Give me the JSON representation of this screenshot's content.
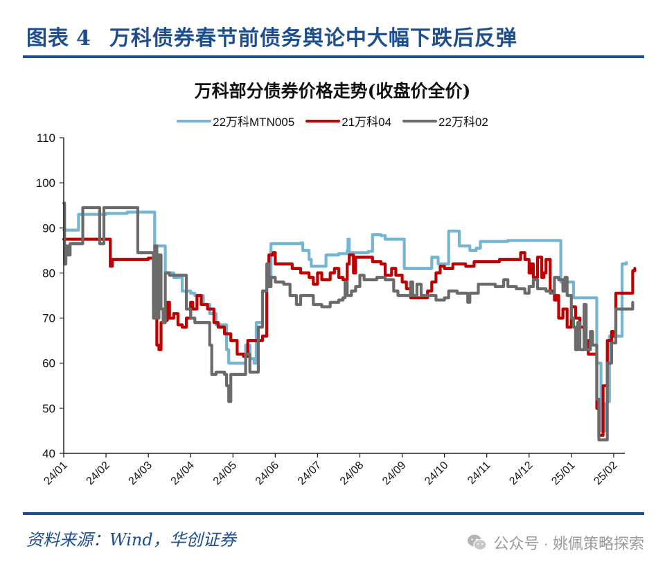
{
  "figure": {
    "label": "图表",
    "number": "4",
    "title": "万科债券春节前债务舆论中大幅下跌后反弹"
  },
  "source": "资料来源：Wind，华创证券",
  "watermark": "公众号 · 姚佩策略探索",
  "colors": {
    "accent": "#1f4e8c",
    "series1": "#74b5d2",
    "series2": "#c00000",
    "series3": "#6b6b6b"
  },
  "chart_data": {
    "type": "line",
    "title": "万科部分债券价格走势(收盘价全价)",
    "xlabel": "",
    "ylabel": "",
    "ylim": [
      40,
      110
    ],
    "yticks": [
      40,
      50,
      60,
      70,
      80,
      90,
      100,
      110
    ],
    "xticks": [
      "24/01",
      "24/02",
      "24/03",
      "24/04",
      "24/05",
      "24/06",
      "24/07",
      "24/08",
      "24/09",
      "24/10",
      "24/11",
      "24/12",
      "25/01",
      "25/02"
    ],
    "grid": false,
    "legend_position": "top",
    "x_unit": "months since 24/01 (0 = 24/01, 13 = 25/02)",
    "series": [
      {
        "name": "22万科MTN005",
        "color": "#74b5d2",
        "points": [
          [
            0,
            89.5
          ],
          [
            0.3,
            89.5
          ],
          [
            0.35,
            93
          ],
          [
            1.0,
            93.2
          ],
          [
            1.5,
            93.5
          ],
          [
            2.1,
            93.5
          ],
          [
            2.15,
            86
          ],
          [
            2.35,
            86
          ],
          [
            2.4,
            80
          ],
          [
            2.6,
            79
          ],
          [
            2.8,
            76
          ],
          [
            3.0,
            75.5
          ],
          [
            3.1,
            75
          ],
          [
            3.3,
            73
          ],
          [
            3.45,
            71
          ],
          [
            3.6,
            68.5
          ],
          [
            3.8,
            68.5
          ],
          [
            3.85,
            63
          ],
          [
            3.9,
            60
          ],
          [
            4.2,
            60
          ],
          [
            4.3,
            64
          ],
          [
            4.4,
            61
          ],
          [
            4.5,
            60
          ],
          [
            4.55,
            69
          ],
          [
            4.7,
            76
          ],
          [
            4.8,
            77
          ],
          [
            4.9,
            86.5
          ],
          [
            5.0,
            86.5
          ],
          [
            5.6,
            86.7
          ],
          [
            5.65,
            85
          ],
          [
            5.8,
            83
          ],
          [
            5.85,
            81.5
          ],
          [
            6.1,
            81.5
          ],
          [
            6.2,
            84
          ],
          [
            6.5,
            84.3
          ],
          [
            6.7,
            85
          ],
          [
            6.72,
            87.5
          ],
          [
            6.75,
            84.5
          ],
          [
            7.2,
            84.8
          ],
          [
            7.3,
            88.5
          ],
          [
            7.5,
            88.3
          ],
          [
            7.6,
            87.5
          ],
          [
            8.0,
            87.5
          ],
          [
            8.05,
            81
          ],
          [
            8.6,
            81
          ],
          [
            8.7,
            83.5
          ],
          [
            8.85,
            82
          ],
          [
            9.0,
            82
          ],
          [
            9.1,
            89.3
          ],
          [
            9.3,
            89.3
          ],
          [
            9.35,
            86
          ],
          [
            9.5,
            86
          ],
          [
            9.6,
            85
          ],
          [
            9.75,
            85.5
          ],
          [
            9.85,
            87
          ],
          [
            10.5,
            87.2
          ],
          [
            11.0,
            87.2
          ],
          [
            11.7,
            87.2
          ],
          [
            11.75,
            78
          ],
          [
            12.0,
            78
          ],
          [
            12.05,
            74.5
          ],
          [
            12.5,
            74.5
          ],
          [
            12.6,
            60
          ],
          [
            12.7,
            45
          ],
          [
            12.8,
            51
          ],
          [
            12.85,
            51.5
          ],
          [
            12.9,
            66
          ],
          [
            13.15,
            66
          ],
          [
            13.2,
            82
          ],
          [
            13.3,
            82.3
          ]
        ]
      },
      {
        "name": "21万科04",
        "color": "#c00000",
        "points": [
          [
            0,
            87.5
          ],
          [
            0.9,
            87.5
          ],
          [
            1.05,
            87.5
          ],
          [
            1.1,
            81.5
          ],
          [
            1.15,
            83
          ],
          [
            2.0,
            83.3
          ],
          [
            2.1,
            83.3
          ],
          [
            2.12,
            73
          ],
          [
            2.2,
            64
          ],
          [
            2.25,
            63
          ],
          [
            2.3,
            69
          ],
          [
            2.4,
            69.5
          ],
          [
            2.45,
            73.5
          ],
          [
            2.5,
            70
          ],
          [
            2.6,
            71
          ],
          [
            2.7,
            68.5
          ],
          [
            2.8,
            68
          ],
          [
            2.9,
            70
          ],
          [
            3.0,
            73.5
          ],
          [
            3.05,
            72
          ],
          [
            3.15,
            75
          ],
          [
            3.25,
            73
          ],
          [
            3.4,
            72
          ],
          [
            3.55,
            69
          ],
          [
            3.65,
            68
          ],
          [
            3.8,
            66.5
          ],
          [
            3.95,
            65
          ],
          [
            4.1,
            62
          ],
          [
            4.25,
            61.5
          ],
          [
            4.35,
            65
          ],
          [
            4.6,
            65
          ],
          [
            4.7,
            66
          ],
          [
            4.8,
            78
          ],
          [
            4.85,
            84
          ],
          [
            4.95,
            84.5
          ],
          [
            5.0,
            82
          ],
          [
            5.2,
            82
          ],
          [
            5.4,
            81
          ],
          [
            5.6,
            80
          ],
          [
            5.8,
            79
          ],
          [
            5.9,
            77.5
          ],
          [
            6.0,
            80
          ],
          [
            6.1,
            78.5
          ],
          [
            6.3,
            80
          ],
          [
            6.4,
            81
          ],
          [
            6.5,
            79
          ],
          [
            6.6,
            78.5
          ],
          [
            6.7,
            82
          ],
          [
            6.75,
            84
          ],
          [
            6.85,
            80
          ],
          [
            6.9,
            83.5
          ],
          [
            7.1,
            83.5
          ],
          [
            7.3,
            82.5
          ],
          [
            7.5,
            82
          ],
          [
            7.6,
            79.5
          ],
          [
            7.75,
            81
          ],
          [
            7.85,
            79.5
          ],
          [
            8.0,
            78
          ],
          [
            8.1,
            76.5
          ],
          [
            8.2,
            74.5
          ],
          [
            8.5,
            74.5
          ],
          [
            8.6,
            76
          ],
          [
            8.7,
            78
          ],
          [
            8.8,
            80
          ],
          [
            8.9,
            81.5
          ],
          [
            9.0,
            81
          ],
          [
            9.2,
            82
          ],
          [
            9.5,
            81.5
          ],
          [
            9.7,
            82.5
          ],
          [
            10.0,
            82.5
          ],
          [
            10.3,
            83
          ],
          [
            10.5,
            83
          ],
          [
            10.7,
            83
          ],
          [
            10.8,
            84.5
          ],
          [
            10.9,
            83
          ],
          [
            11.0,
            80
          ],
          [
            11.05,
            82
          ],
          [
            11.1,
            79
          ],
          [
            11.2,
            83.5
          ],
          [
            11.3,
            79
          ],
          [
            11.35,
            80
          ],
          [
            11.4,
            83
          ],
          [
            11.5,
            76
          ],
          [
            11.6,
            74
          ],
          [
            11.65,
            75
          ],
          [
            11.7,
            70
          ],
          [
            11.8,
            72
          ],
          [
            11.9,
            68
          ],
          [
            12.0,
            72.5
          ],
          [
            12.1,
            70
          ],
          [
            12.2,
            68
          ],
          [
            12.3,
            65
          ],
          [
            12.4,
            62
          ],
          [
            12.5,
            62
          ],
          [
            12.6,
            50
          ],
          [
            12.65,
            44
          ],
          [
            12.75,
            55
          ],
          [
            12.85,
            65
          ],
          [
            12.95,
            67
          ],
          [
            13.0,
            66
          ],
          [
            13.05,
            75.5
          ],
          [
            13.4,
            75.5
          ],
          [
            13.45,
            80.5
          ],
          [
            13.5,
            81
          ]
        ]
      },
      {
        "name": "22万科02",
        "color": "#6b6b6b",
        "points": [
          [
            0,
            95.5
          ],
          [
            0.02,
            82
          ],
          [
            0.05,
            86
          ],
          [
            0.1,
            84
          ],
          [
            0.15,
            86.5
          ],
          [
            0.4,
            86.5
          ],
          [
            0.45,
            94.5
          ],
          [
            0.8,
            94.5
          ],
          [
            0.85,
            86.5
          ],
          [
            0.9,
            86.5
          ],
          [
            0.95,
            94.5
          ],
          [
            1.3,
            94.5
          ],
          [
            1.7,
            94.5
          ],
          [
            1.75,
            84.5
          ],
          [
            2.05,
            84.5
          ],
          [
            2.1,
            84.5
          ],
          [
            2.12,
            70
          ],
          [
            2.15,
            86
          ],
          [
            2.2,
            70
          ],
          [
            2.25,
            84
          ],
          [
            2.3,
            72
          ],
          [
            2.35,
            69
          ],
          [
            2.4,
            80
          ],
          [
            2.5,
            79.5
          ],
          [
            2.85,
            79.5
          ],
          [
            2.9,
            72
          ],
          [
            3.0,
            70
          ],
          [
            3.1,
            69
          ],
          [
            3.4,
            69
          ],
          [
            3.45,
            64
          ],
          [
            3.5,
            57.5
          ],
          [
            3.6,
            58
          ],
          [
            3.8,
            57.5
          ],
          [
            3.85,
            55
          ],
          [
            3.9,
            51.5
          ],
          [
            3.95,
            57.5
          ],
          [
            4.2,
            57.5
          ],
          [
            4.3,
            62
          ],
          [
            4.4,
            58
          ],
          [
            4.5,
            58
          ],
          [
            4.6,
            68
          ],
          [
            4.7,
            76
          ],
          [
            4.8,
            82
          ],
          [
            4.85,
            77
          ],
          [
            4.9,
            79
          ],
          [
            5.0,
            78
          ],
          [
            5.2,
            77.5
          ],
          [
            5.35,
            75
          ],
          [
            5.5,
            73
          ],
          [
            5.6,
            75
          ],
          [
            5.8,
            75
          ],
          [
            5.9,
            73
          ],
          [
            6.1,
            72.5
          ],
          [
            6.3,
            73.5
          ],
          [
            6.5,
            74
          ],
          [
            6.6,
            74.5
          ],
          [
            6.65,
            78
          ],
          [
            6.7,
            75
          ],
          [
            6.8,
            76
          ],
          [
            6.9,
            77
          ],
          [
            7.0,
            79.5
          ],
          [
            7.1,
            78.5
          ],
          [
            7.4,
            79
          ],
          [
            7.6,
            78.5
          ],
          [
            7.8,
            76
          ],
          [
            7.9,
            75
          ],
          [
            8.1,
            75
          ],
          [
            8.2,
            78
          ],
          [
            8.25,
            75
          ],
          [
            8.35,
            77.5
          ],
          [
            8.45,
            75
          ],
          [
            8.6,
            75
          ],
          [
            8.8,
            74
          ],
          [
            9.0,
            74.5
          ],
          [
            9.1,
            76
          ],
          [
            9.2,
            76
          ],
          [
            9.3,
            75.5
          ],
          [
            9.5,
            75.5
          ],
          [
            9.55,
            73.5
          ],
          [
            9.6,
            75.5
          ],
          [
            9.8,
            77.5
          ],
          [
            10.0,
            77.5
          ],
          [
            10.2,
            77
          ],
          [
            10.4,
            78.5
          ],
          [
            10.5,
            77
          ],
          [
            10.7,
            76.5
          ],
          [
            10.9,
            75.5
          ],
          [
            11.0,
            77
          ],
          [
            11.1,
            78.5
          ],
          [
            11.2,
            76.5
          ],
          [
            11.4,
            76
          ],
          [
            11.5,
            75.5
          ],
          [
            11.6,
            79
          ],
          [
            11.7,
            78.5
          ],
          [
            11.8,
            76
          ],
          [
            11.85,
            79
          ],
          [
            11.9,
            75
          ],
          [
            12.0,
            70
          ],
          [
            12.05,
            68
          ],
          [
            12.1,
            63
          ],
          [
            12.15,
            69
          ],
          [
            12.2,
            63
          ],
          [
            12.3,
            73
          ],
          [
            12.35,
            63
          ],
          [
            12.45,
            67
          ],
          [
            12.5,
            64
          ],
          [
            12.6,
            52
          ],
          [
            12.65,
            43
          ],
          [
            12.75,
            43
          ],
          [
            12.85,
            60
          ],
          [
            12.95,
            64.5
          ],
          [
            13.0,
            64.5
          ],
          [
            13.05,
            72
          ],
          [
            13.35,
            72
          ],
          [
            13.45,
            73.5
          ]
        ]
      }
    ]
  }
}
